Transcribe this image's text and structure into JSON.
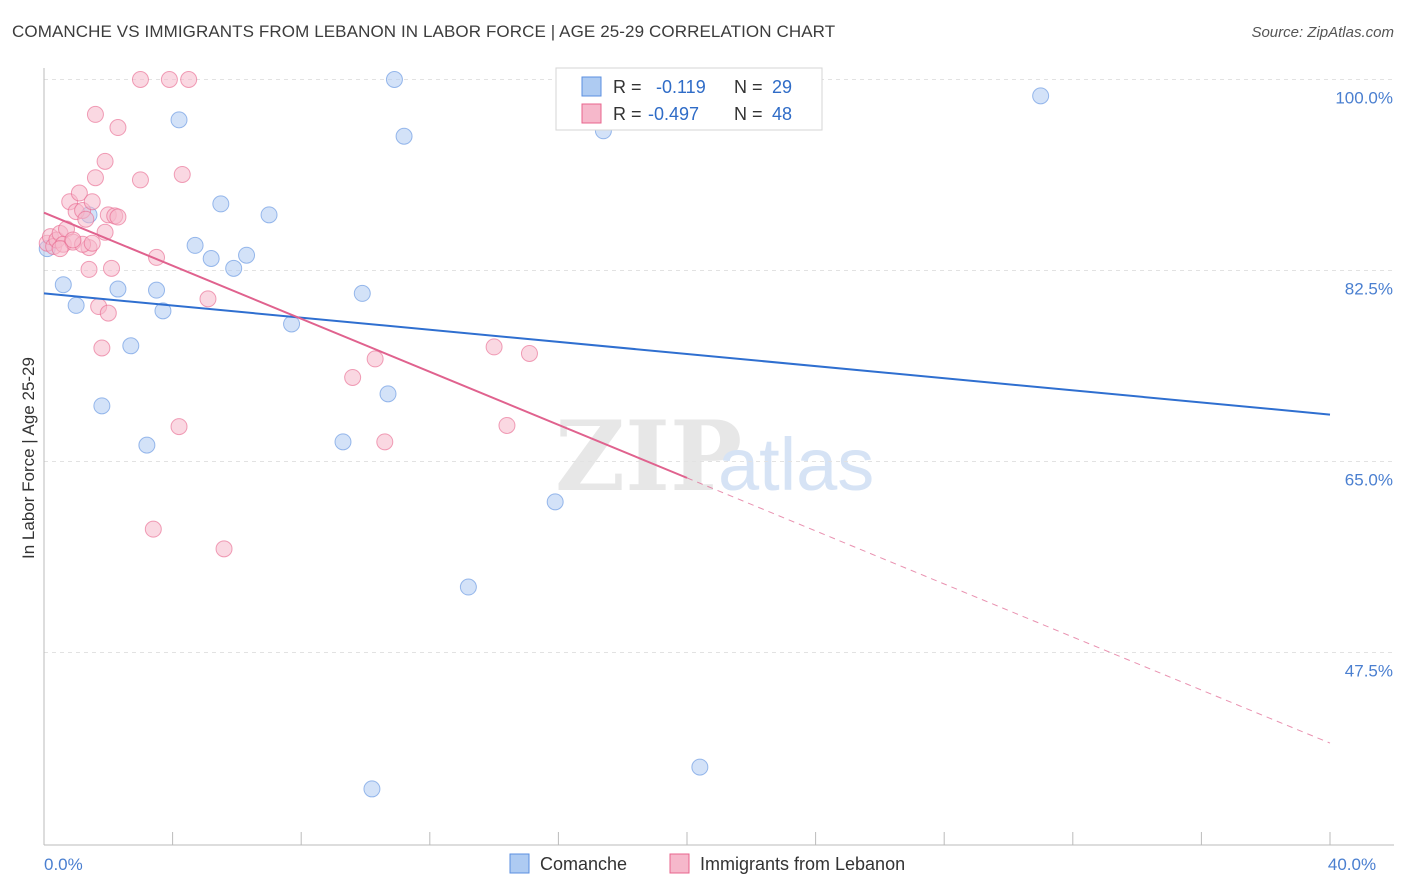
{
  "title": "COMANCHE VS IMMIGRANTS FROM LEBANON IN LABOR FORCE | AGE 25-29 CORRELATION CHART",
  "source": "Source: ZipAtlas.com",
  "watermark": {
    "zip": "ZIP",
    "atlas": "atlas"
  },
  "legend": {
    "r_label": "R =",
    "n_label": "N =",
    "rows": [
      {
        "r": "-0.119",
        "n": "29"
      },
      {
        "r": "-0.497",
        "n": "48"
      }
    ]
  },
  "chart_data": {
    "type": "scatter",
    "title": "COMANCHE VS IMMIGRANTS FROM LEBANON IN LABOR FORCE | AGE 25-29 CORRELATION CHART",
    "xlabel": "",
    "ylabel": "In Labor Force | Age 25-29",
    "xlim": [
      0,
      40
    ],
    "ylim": [
      33,
      102.5
    ],
    "x_tick_labels": [
      {
        "value": 0,
        "label": "0.0%"
      },
      {
        "value": 40,
        "label": "40.0%"
      }
    ],
    "y_tick_labels": [
      {
        "value": 100,
        "label": "100.0%"
      },
      {
        "value": 82.5,
        "label": "82.5%"
      },
      {
        "value": 65,
        "label": "65.0%"
      },
      {
        "value": 47.5,
        "label": "47.5%"
      }
    ],
    "colors": {
      "comanche": "#5b8fe0",
      "comanche_fill": "#aecbf2",
      "lebanon": "#e8648c",
      "lebanon_fill": "#f6b8cb"
    },
    "series": [
      {
        "name": "Comanche",
        "trend": {
          "x0": 0,
          "y0": 80.4,
          "x1": 40,
          "y1": 69.3,
          "dashed_to": null
        },
        "points": [
          {
            "x": 0.1,
            "y": 84.5
          },
          {
            "x": 0.6,
            "y": 81.2
          },
          {
            "x": 1.0,
            "y": 79.3
          },
          {
            "x": 1.4,
            "y": 87.6
          },
          {
            "x": 1.8,
            "y": 70.1
          },
          {
            "x": 2.3,
            "y": 80.8
          },
          {
            "x": 2.7,
            "y": 75.6
          },
          {
            "x": 3.2,
            "y": 66.5
          },
          {
            "x": 3.5,
            "y": 80.7
          },
          {
            "x": 3.7,
            "y": 78.8
          },
          {
            "x": 4.2,
            "y": 96.3
          },
          {
            "x": 4.7,
            "y": 84.8
          },
          {
            "x": 5.2,
            "y": 83.6
          },
          {
            "x": 5.5,
            "y": 88.6
          },
          {
            "x": 5.9,
            "y": 82.7
          },
          {
            "x": 6.3,
            "y": 83.9
          },
          {
            "x": 7.0,
            "y": 87.6
          },
          {
            "x": 7.7,
            "y": 77.6
          },
          {
            "x": 9.3,
            "y": 66.8
          },
          {
            "x": 9.9,
            "y": 80.4
          },
          {
            "x": 10.2,
            "y": 35.0
          },
          {
            "x": 10.7,
            "y": 71.2
          },
          {
            "x": 10.9,
            "y": 100.0
          },
          {
            "x": 11.2,
            "y": 94.8
          },
          {
            "x": 13.2,
            "y": 53.5
          },
          {
            "x": 15.9,
            "y": 61.3
          },
          {
            "x": 17.4,
            "y": 95.3
          },
          {
            "x": 20.4,
            "y": 37.0
          },
          {
            "x": 31.0,
            "y": 98.5
          }
        ]
      },
      {
        "name": "Immigrants from Lebanon",
        "trend": {
          "x0": 0,
          "y0": 87.8,
          "x1": 20.0,
          "y1": 63.5,
          "dashed_to": {
            "x": 40,
            "y": 39.2
          }
        },
        "points": [
          {
            "x": 0.1,
            "y": 85.0
          },
          {
            "x": 0.2,
            "y": 85.6
          },
          {
            "x": 0.3,
            "y": 84.7
          },
          {
            "x": 0.4,
            "y": 85.3
          },
          {
            "x": 0.5,
            "y": 85.9
          },
          {
            "x": 0.6,
            "y": 84.9
          },
          {
            "x": 0.7,
            "y": 86.3
          },
          {
            "x": 0.8,
            "y": 88.8
          },
          {
            "x": 0.9,
            "y": 85.1
          },
          {
            "x": 1.0,
            "y": 87.9
          },
          {
            "x": 1.1,
            "y": 89.6
          },
          {
            "x": 1.2,
            "y": 88.0
          },
          {
            "x": 1.3,
            "y": 87.2
          },
          {
            "x": 1.4,
            "y": 84.6
          },
          {
            "x": 1.4,
            "y": 82.6
          },
          {
            "x": 1.5,
            "y": 88.8
          },
          {
            "x": 1.6,
            "y": 91.0
          },
          {
            "x": 1.6,
            "y": 96.8
          },
          {
            "x": 1.7,
            "y": 79.2
          },
          {
            "x": 1.8,
            "y": 75.4
          },
          {
            "x": 1.9,
            "y": 86.0
          },
          {
            "x": 1.9,
            "y": 92.5
          },
          {
            "x": 2.0,
            "y": 87.6
          },
          {
            "x": 2.0,
            "y": 78.6
          },
          {
            "x": 2.1,
            "y": 82.7
          },
          {
            "x": 2.2,
            "y": 87.5
          },
          {
            "x": 2.3,
            "y": 87.4
          },
          {
            "x": 2.3,
            "y": 95.6
          },
          {
            "x": 3.0,
            "y": 90.8
          },
          {
            "x": 3.0,
            "y": 100.0
          },
          {
            "x": 3.4,
            "y": 58.8
          },
          {
            "x": 3.5,
            "y": 83.7
          },
          {
            "x": 3.9,
            "y": 100.0
          },
          {
            "x": 4.2,
            "y": 68.2
          },
          {
            "x": 4.3,
            "y": 91.3
          },
          {
            "x": 4.5,
            "y": 100.0
          },
          {
            "x": 5.1,
            "y": 79.9
          },
          {
            "x": 5.6,
            "y": 57.0
          },
          {
            "x": 9.6,
            "y": 72.7
          },
          {
            "x": 10.3,
            "y": 74.4
          },
          {
            "x": 10.6,
            "y": 66.8
          },
          {
            "x": 14.0,
            "y": 75.5
          },
          {
            "x": 14.4,
            "y": 68.3
          },
          {
            "x": 15.1,
            "y": 74.9
          },
          {
            "x": 1.2,
            "y": 84.9
          },
          {
            "x": 0.5,
            "y": 84.5
          },
          {
            "x": 0.9,
            "y": 85.3
          },
          {
            "x": 1.5,
            "y": 85.0
          }
        ]
      }
    ],
    "legend_position": "top-center"
  }
}
